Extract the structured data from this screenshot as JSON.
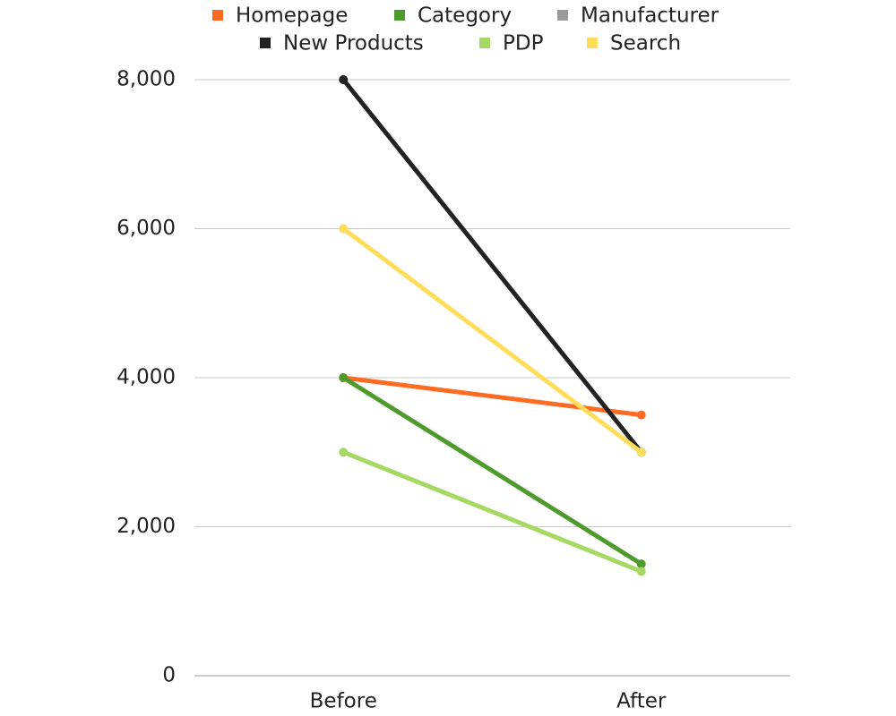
{
  "chart_data": {
    "type": "line",
    "categories": [
      "Before",
      "After"
    ],
    "series": [
      {
        "name": "Homepage",
        "color": "#ff6b22",
        "values": [
          4000,
          3500
        ]
      },
      {
        "name": "Category",
        "color": "#4f9a2c",
        "values": [
          4000,
          1500
        ]
      },
      {
        "name": "Manufacturer",
        "color": "#9a9a9a",
        "values": [
          null,
          null
        ]
      },
      {
        "name": "New Products",
        "color": "#222222",
        "values": [
          8000,
          3000
        ]
      },
      {
        "name": "PDP",
        "color": "#a6d864",
        "values": [
          3000,
          1400
        ]
      },
      {
        "name": "Search",
        "color": "#ffdc5a",
        "values": [
          6000,
          3000
        ]
      }
    ],
    "ylim": [
      0,
      8000
    ],
    "yticks": [
      0,
      {
        "value": 2000,
        "label": "2,000"
      },
      {
        "value": 4000,
        "label": "4,000"
      },
      {
        "value": 6000,
        "label": "6,000"
      },
      {
        "value": 8000,
        "label": "8,000"
      }
    ],
    "grid": true,
    "legend": "top"
  }
}
